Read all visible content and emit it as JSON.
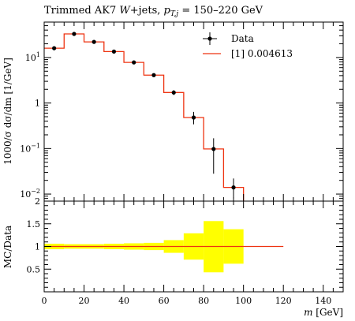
{
  "chart_data": {
    "type": "line",
    "title": "Trimmed AK7 W+jets, p_{T,j} = 150–220 GeV",
    "title_parts": {
      "lead": "Trimmed AK7 ",
      "w": "W",
      "jets": "+jets, ",
      "p": "p",
      "sub": "T,j",
      "tail": " = 150–220 GeV"
    },
    "main": {
      "ylabel": "1000/σ dσ/dm [1/GeV]",
      "yscale": "log",
      "ylim": [
        0.007,
        60
      ],
      "ytick_values": [
        0.01,
        0.1,
        1,
        10
      ],
      "ytick_labels": [
        {
          "base": "10",
          "exp": "−2"
        },
        {
          "base": "10",
          "exp": "−1"
        },
        {
          "base": "1",
          "exp": ""
        },
        {
          "base": "10",
          "exp": "1"
        }
      ]
    },
    "ratio": {
      "ylabel": "MC/Data",
      "ylim": [
        0,
        2
      ],
      "ytick_values": [
        0.5,
        1,
        1.5,
        2
      ],
      "ytick_labels": [
        "0.5",
        "1",
        "1.5",
        "2"
      ]
    },
    "xaxis": {
      "xlabel_var": "m",
      "xlabel_unit": "[GeV]",
      "xlim": [
        0,
        150
      ],
      "xtick_values": [
        0,
        20,
        40,
        60,
        80,
        100,
        120,
        140
      ],
      "xtick_labels": [
        "0",
        "20",
        "40",
        "60",
        "80",
        "100",
        "120",
        "140"
      ]
    },
    "legend": {
      "placement": "top-right",
      "entries": [
        {
          "label": "Data",
          "style": "marker"
        },
        {
          "label": "[1] 0.004613",
          "style": "line"
        }
      ]
    },
    "series": [
      {
        "name": "Data",
        "x": [
          5,
          15,
          25,
          35,
          45,
          55,
          65,
          75,
          85,
          95
        ],
        "y": [
          16,
          33,
          22,
          13.5,
          7.8,
          4.1,
          1.7,
          0.48,
          0.098,
          0.014
        ],
        "err_low": [
          1.0,
          1.5,
          1.2,
          0.8,
          0.5,
          0.3,
          0.2,
          0.14,
          0.07,
          0.006
        ],
        "err_high": [
          1.0,
          1.5,
          1.2,
          0.8,
          0.5,
          0.3,
          0.22,
          0.16,
          0.07,
          0.008
        ]
      },
      {
        "name": "[1] 0.004613",
        "bin_edges": [
          0,
          10,
          20,
          30,
          40,
          50,
          60,
          70,
          80,
          90,
          100
        ],
        "y": [
          16,
          33,
          22,
          13.5,
          7.8,
          4.1,
          1.7,
          0.48,
          0.098,
          0.014
        ]
      }
    ],
    "ratio_band": {
      "bin_edges": [
        0,
        10,
        20,
        30,
        40,
        50,
        60,
        70,
        80,
        90,
        100
      ],
      "low": [
        0.94,
        0.95,
        0.95,
        0.94,
        0.93,
        0.92,
        0.86,
        0.71,
        0.43,
        0.62
      ],
      "high": [
        1.06,
        1.05,
        1.05,
        1.06,
        1.07,
        1.08,
        1.14,
        1.29,
        1.56,
        1.38
      ]
    },
    "ratio_line": {
      "x": [
        0,
        120
      ],
      "y": 1
    },
    "colors": {
      "data": "#000000",
      "mc": "#ee3311",
      "band": "#ffff00"
    }
  }
}
